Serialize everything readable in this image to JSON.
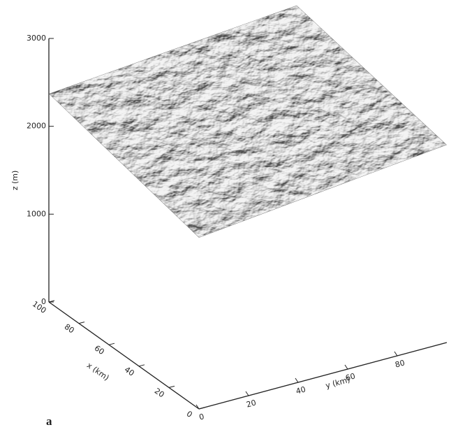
{
  "chart_data": {
    "type": "surface",
    "panel_label": "a",
    "x_label": "x (km)",
    "y_label": "y (km)",
    "z_label": "z (m)",
    "xlim": [
      0,
      100
    ],
    "xticks": [
      0,
      20,
      40,
      60,
      80,
      100
    ],
    "ylim": [
      0,
      100
    ],
    "yticks": [
      0,
      20,
      40,
      60,
      80
    ],
    "zlim": [
      0,
      3000
    ],
    "zticks": [
      0,
      1000,
      2000,
      3000
    ],
    "surface": {
      "x": [
        0,
        100
      ],
      "y": [
        0,
        100
      ],
      "z": [
        [
          1950,
          2250
        ],
        [
          2370,
          2620
        ]
      ]
    }
  }
}
